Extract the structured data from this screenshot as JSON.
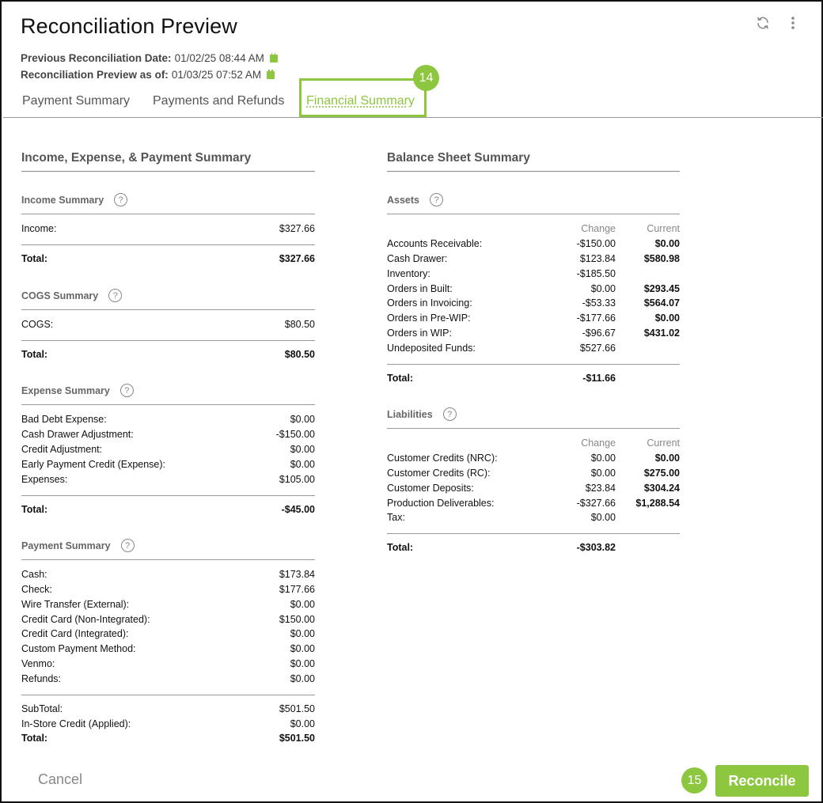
{
  "header": {
    "title": "Reconciliation Preview",
    "prev_label": "Previous Reconciliation Date:",
    "prev_value": "01/02/25 08:44 AM",
    "asof_label": "Reconciliation Preview as of:",
    "asof_value": "01/03/25 07:52 AM",
    "icons": [
      "refresh-icon",
      "more-vertical-icon",
      "calendar-icon"
    ]
  },
  "tabs": [
    {
      "label": "Payment Summary"
    },
    {
      "label": "Payments and Refunds"
    },
    {
      "label": "Financial Summary",
      "active": true
    }
  ],
  "callouts": {
    "tab": "14",
    "reconcile": "15"
  },
  "left": {
    "title": "Income, Expense, & Payment Summary",
    "income": {
      "title": "Income Summary",
      "rows": [
        {
          "label": "Income:",
          "value": "$327.66"
        }
      ],
      "total_label": "Total:",
      "total": "$327.66"
    },
    "cogs": {
      "title": "COGS Summary",
      "rows": [
        {
          "label": "COGS:",
          "value": "$80.50"
        }
      ],
      "total_label": "Total:",
      "total": "$80.50"
    },
    "expense": {
      "title": "Expense Summary",
      "rows": [
        {
          "label": "Bad Debt Expense:",
          "value": "$0.00"
        },
        {
          "label": "Cash Drawer Adjustment:",
          "value": "-$150.00"
        },
        {
          "label": "Credit Adjustment:",
          "value": "$0.00"
        },
        {
          "label": "Early Payment Credit (Expense):",
          "value": "$0.00"
        },
        {
          "label": "Expenses:",
          "value": "$105.00"
        }
      ],
      "total_label": "Total:",
      "total": "-$45.00"
    },
    "payment": {
      "title": "Payment Summary",
      "rows": [
        {
          "label": "Cash:",
          "value": "$173.84"
        },
        {
          "label": "Check:",
          "value": "$177.66"
        },
        {
          "label": "Wire Transfer (External):",
          "value": "$0.00"
        },
        {
          "label": "Credit Card (Non-Integrated):",
          "value": "$150.00"
        },
        {
          "label": "Credit Card (Integrated):",
          "value": "$0.00"
        },
        {
          "label": "Custom Payment Method:",
          "value": "$0.00"
        },
        {
          "label": "Venmo:",
          "value": "$0.00"
        },
        {
          "label": "Refunds:",
          "value": "$0.00"
        }
      ],
      "subtotal_label": "SubTotal:",
      "subtotal": "$501.50",
      "instore_label": "In-Store Credit (Applied):",
      "instore": "$0.00",
      "total_label": "Total:",
      "total": "$501.50"
    }
  },
  "right": {
    "title": "Balance Sheet Summary",
    "col_change": "Change",
    "col_current": "Current",
    "assets": {
      "title": "Assets",
      "rows": [
        {
          "label": "Accounts Receivable:",
          "change": "-$150.00",
          "current": "$0.00"
        },
        {
          "label": "Cash Drawer:",
          "change": "$123.84",
          "current": "$580.98"
        },
        {
          "label": "Inventory:",
          "change": "-$185.50",
          "current": ""
        },
        {
          "label": "Orders in Built:",
          "change": "$0.00",
          "current": "$293.45"
        },
        {
          "label": "Orders in Invoicing:",
          "change": "-$53.33",
          "current": "$564.07"
        },
        {
          "label": "Orders in Pre-WIP:",
          "change": "-$177.66",
          "current": "$0.00"
        },
        {
          "label": "Orders in WIP:",
          "change": "-$96.67",
          "current": "$431.02"
        },
        {
          "label": "Undeposited Funds:",
          "change": "$527.66",
          "current": ""
        }
      ],
      "total_label": "Total:",
      "total": "-$11.66"
    },
    "liabilities": {
      "title": "Liabilities",
      "rows": [
        {
          "label": "Customer Credits (NRC):",
          "change": "$0.00",
          "current": "$0.00"
        },
        {
          "label": "Customer Credits (RC):",
          "change": "$0.00",
          "current": "$275.00"
        },
        {
          "label": "Customer Deposits:",
          "change": "$23.84",
          "current": "$304.24"
        },
        {
          "label": "Production Deliverables:",
          "change": "-$327.66",
          "current": "$1,288.54"
        },
        {
          "label": "Tax:",
          "change": "$0.00",
          "current": ""
        }
      ],
      "total_label": "Total:",
      "total": "-$303.82"
    }
  },
  "footer": {
    "cancel_label": "Cancel",
    "reconcile_label": "Reconcile"
  },
  "colors": {
    "accent": "#8dc63f"
  }
}
